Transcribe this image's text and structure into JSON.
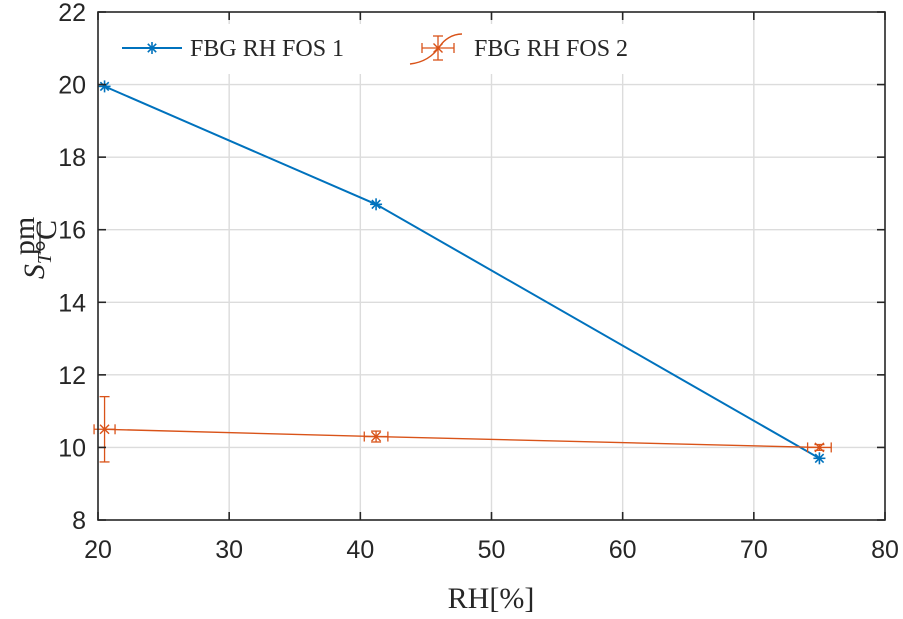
{
  "chart_data": {
    "type": "line",
    "xlabel": "RH[%]",
    "ylabel": {
      "main": "S",
      "sub": "T",
      "unit_num": "pm",
      "unit_den": "°C"
    },
    "xlim": [
      20,
      80
    ],
    "ylim": [
      8,
      22
    ],
    "xticks": [
      20,
      30,
      40,
      50,
      60,
      70,
      80
    ],
    "yticks": [
      8,
      10,
      12,
      14,
      16,
      18,
      20,
      22
    ],
    "grid": true,
    "legend_position": "top-left",
    "series": [
      {
        "name": "FBG RH FOS 1",
        "color": "#0072BD",
        "marker": "asterisk",
        "x": [
          20.5,
          41.2,
          75.0
        ],
        "y": [
          19.95,
          16.7,
          9.7
        ]
      },
      {
        "name": "FBG RH FOS 2",
        "color": "#D95319",
        "marker": "x",
        "errorbars": true,
        "x": [
          20.5,
          41.2,
          75.0
        ],
        "y": [
          10.5,
          10.3,
          10.0
        ],
        "yerr": [
          0.9,
          0.15,
          0.08
        ],
        "xerr": [
          0.8,
          0.9,
          0.9
        ]
      }
    ]
  }
}
